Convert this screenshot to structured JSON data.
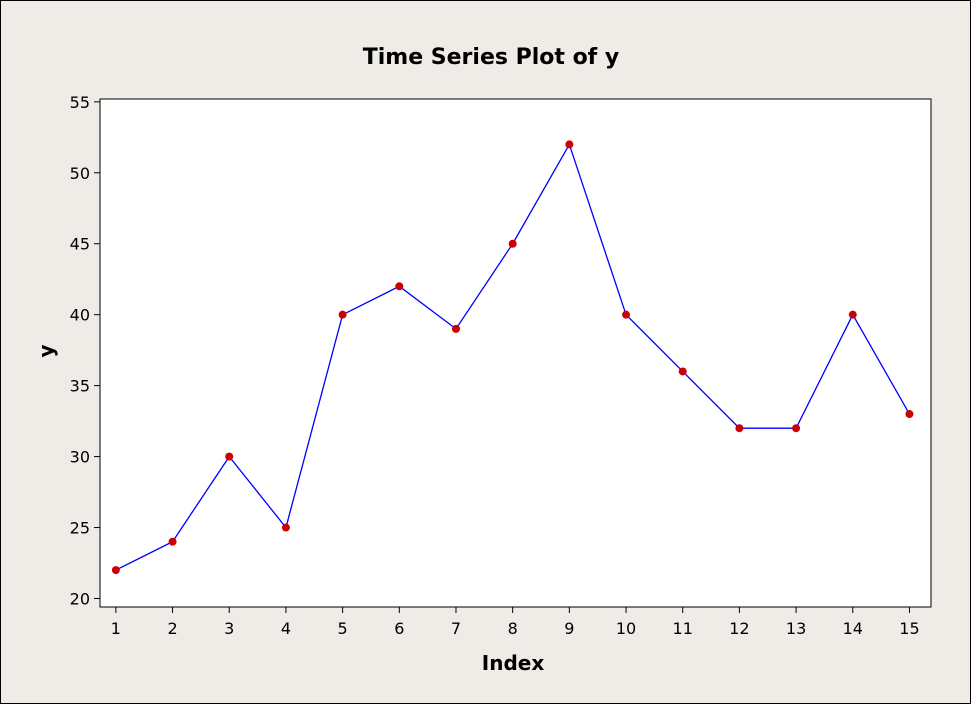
{
  "chart_data": {
    "type": "line",
    "title": "Time Series Plot of y",
    "xlabel": "Index",
    "ylabel": "y",
    "x": [
      1,
      2,
      3,
      4,
      5,
      6,
      7,
      8,
      9,
      10,
      11,
      12,
      13,
      14,
      15
    ],
    "series": [
      {
        "values": [
          22,
          24,
          30,
          25,
          40,
          42,
          39,
          45,
          52,
          40,
          36,
          32,
          32,
          40,
          33
        ]
      }
    ],
    "xlim": [
      0.72,
      15.38
    ],
    "ylim": [
      19.4,
      55.2
    ],
    "yticks": [
      20,
      25,
      30,
      35,
      40,
      45,
      50,
      55
    ],
    "xticks": [
      1,
      2,
      3,
      4,
      5,
      6,
      7,
      8,
      9,
      10,
      11,
      12,
      13,
      14,
      15
    ],
    "grid": false,
    "line_color": "#0000ff",
    "marker_color": "#cc0000",
    "plot_background": "#ffffff",
    "figure_background": "#efebe7"
  }
}
